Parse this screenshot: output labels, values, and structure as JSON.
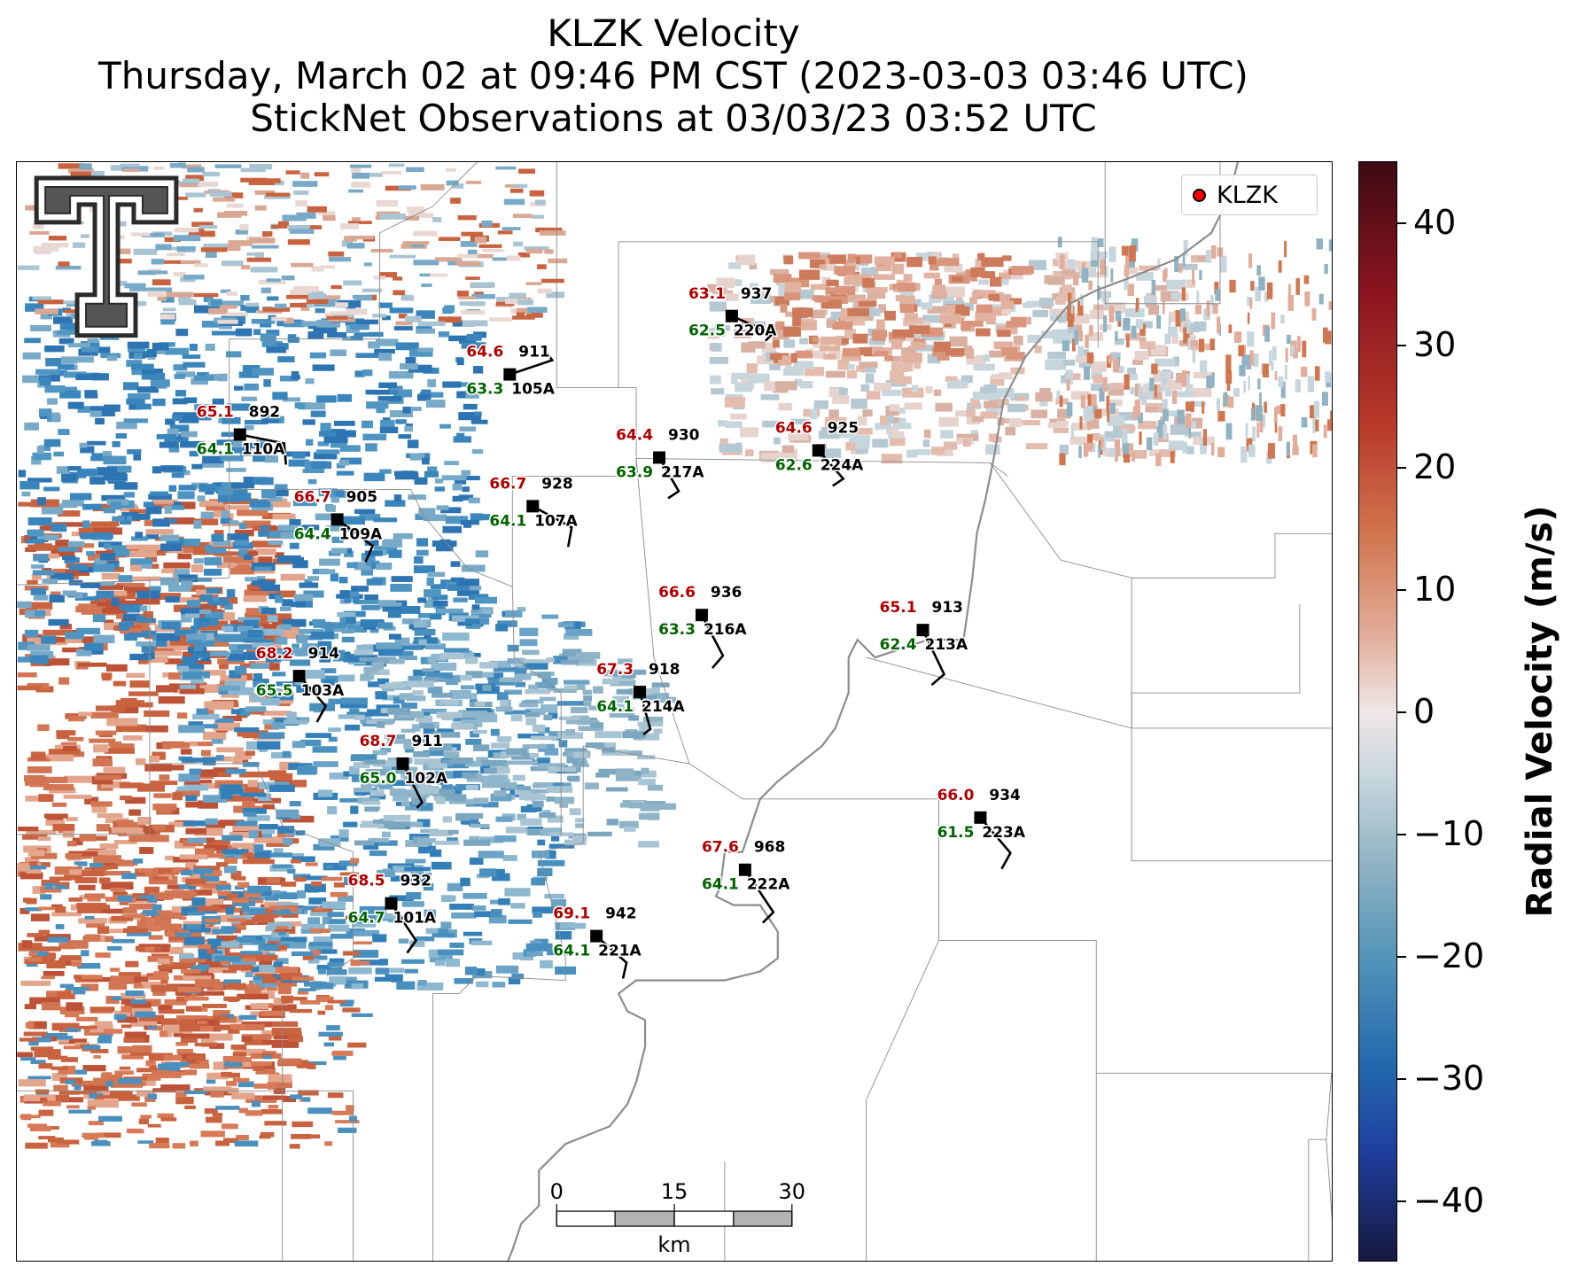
{
  "title": {
    "line1": "KLZK Velocity",
    "line2": "Thursday, March 02 at 09:46 PM CST (2023-03-03 03:46 UTC)",
    "line3": "StickNet Observations at 03/03/23 03:52 UTC"
  },
  "legend": {
    "label": "KLZK",
    "marker_color": "#ff0000"
  },
  "colorbar": {
    "label": "Radial Velocity (m/s)",
    "range": [
      -45,
      45
    ],
    "ticks": [
      "40",
      "30",
      "20",
      "10",
      "0",
      "−10",
      "−20",
      "−30",
      "−40"
    ],
    "tick_values": [
      40,
      30,
      20,
      10,
      0,
      -10,
      -20,
      -30,
      -40
    ]
  },
  "scale_bar": {
    "ticks": [
      "0",
      "15",
      "30"
    ],
    "unit": "km"
  },
  "logo": "texas-tech-double-t-logo",
  "colors": {
    "temperature": "#b20000",
    "dewpoint": "#006400",
    "label": "#000000"
  },
  "stations": [
    {
      "id": "110A",
      "temp": "65.1",
      "dew": "64.1",
      "pres": "892"
    },
    {
      "id": "105A",
      "temp": "64.6",
      "dew": "63.3",
      "pres": "911"
    },
    {
      "id": "220A",
      "temp": "63.1",
      "dew": "62.5",
      "pres": "937"
    },
    {
      "id": "217A",
      "temp": "64.4",
      "dew": "63.9",
      "pres": "930"
    },
    {
      "id": "224A",
      "temp": "64.6",
      "dew": "62.6",
      "pres": "925"
    },
    {
      "id": "109A",
      "temp": "66.7",
      "dew": "64.4",
      "pres": "905"
    },
    {
      "id": "107A",
      "temp": "66.7",
      "dew": "64.1",
      "pres": "928"
    },
    {
      "id": "216A",
      "temp": "66.6",
      "dew": "63.3",
      "pres": "936"
    },
    {
      "id": "213A",
      "temp": "65.1",
      "dew": "62.4",
      "pres": "913"
    },
    {
      "id": "103A",
      "temp": "68.2",
      "dew": "65.5",
      "pres": "914"
    },
    {
      "id": "214A",
      "temp": "67.3",
      "dew": "64.1",
      "pres": "918"
    },
    {
      "id": "102A",
      "temp": "68.7",
      "dew": "65.0",
      "pres": "911"
    },
    {
      "id": "223A",
      "temp": "66.0",
      "dew": "61.5",
      "pres": "934"
    },
    {
      "id": "222A",
      "temp": "67.6",
      "dew": "64.1",
      "pres": "968"
    },
    {
      "id": "101A",
      "temp": "68.5",
      "dew": "64.7",
      "pres": "932"
    },
    {
      "id": "221A",
      "temp": "69.1",
      "dew": "64.1",
      "pres": "942"
    }
  ]
}
